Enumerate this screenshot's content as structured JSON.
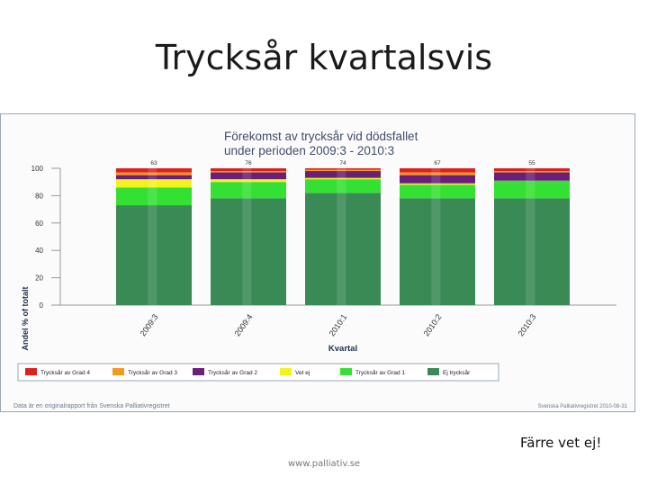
{
  "slide": {
    "title": "Trycksår kvartalsvis",
    "note": "Färre vet ej!",
    "footer": "www.palliativ.se"
  },
  "chart_data": {
    "type": "bar",
    "stacked": true,
    "percent_stacked": true,
    "title": "Förekomst av trycksår vid dödsfallet",
    "subtitle": "under perioden 2009:3 - 2010:3",
    "xlabel": "Kvartal",
    "ylabel": "Andel % of totalt",
    "ylim": [
      0,
      100
    ],
    "yticks": [
      0,
      20,
      40,
      60,
      80,
      100
    ],
    "categories": [
      "2009:3",
      "2009:4",
      "2010:1",
      "2010:2",
      "2010:3"
    ],
    "bar_counts": [
      "63",
      "76",
      "74",
      "67",
      "55"
    ],
    "legend_position": "bottom",
    "grid": false,
    "series": [
      {
        "name": "Ej trycksår",
        "color": "#3a8a55",
        "values": [
          73,
          78,
          82,
          78,
          78
        ]
      },
      {
        "name": "Trycksår av Grad 1",
        "color": "#35e035",
        "values": [
          13,
          12,
          10,
          10,
          13
        ]
      },
      {
        "name": "Vet ej",
        "color": "#f2f21e",
        "values": [
          6,
          2,
          1,
          1,
          0
        ]
      },
      {
        "name": "Trycksår av Grad 2",
        "color": "#6a1f7a",
        "values": [
          3,
          5,
          5,
          6,
          6
        ]
      },
      {
        "name": "Trycksår av Grad 3",
        "color": "#f39a1e",
        "values": [
          2,
          1,
          1,
          2,
          1
        ]
      },
      {
        "name": "Trycksår av Grad 4",
        "color": "#e01f1f",
        "values": [
          3,
          2,
          1,
          3,
          2
        ]
      }
    ],
    "legend_order": [
      "Trycksår av Grad 4",
      "Trycksår av Grad 3",
      "Trycksår av Grad 2",
      "Vet ej",
      "Trycksår av Grad 1",
      "Ej trycksår"
    ],
    "source_note": "Data är en originalrapport från Svenska Palliativregistret",
    "date_note": "Svenska Palliativregistret 2010-08-31"
  }
}
